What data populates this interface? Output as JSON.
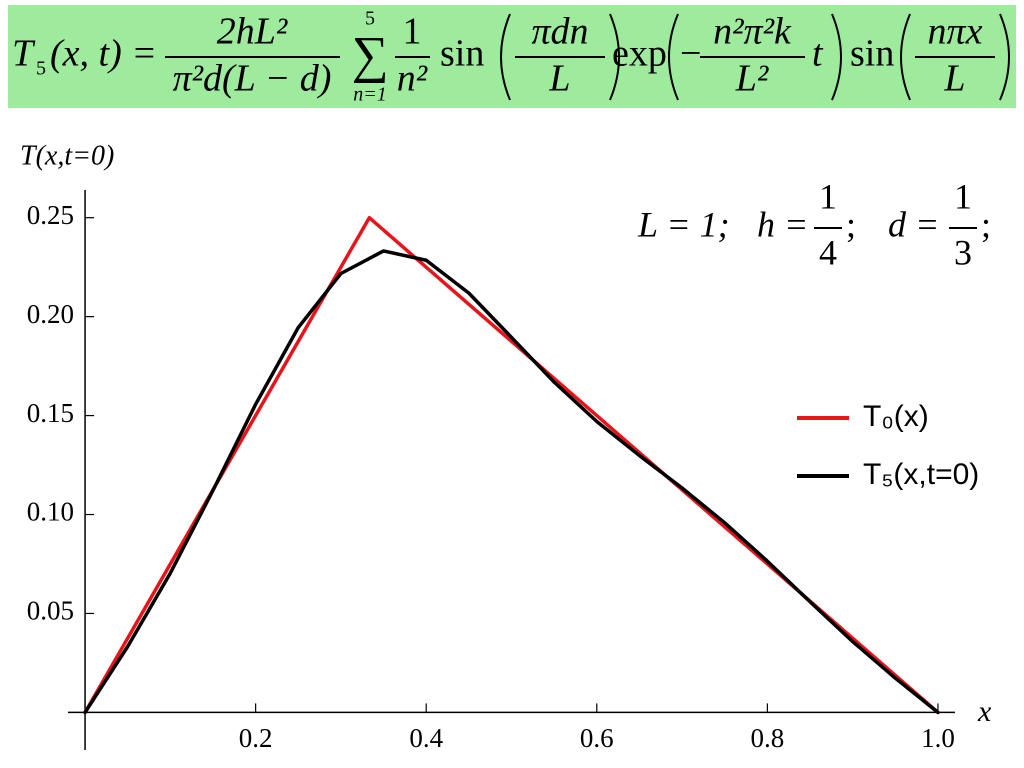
{
  "formula": {
    "lhs": "T",
    "lhs_sub": "5",
    "lhs_args": "(x, t) =",
    "coef_num": "2hL²",
    "coef_den": "π²d(L − d)",
    "sum": "∑",
    "sum_top": "5",
    "sum_bottom": "n=1",
    "frac1_num": "1",
    "frac1_den": "n²",
    "sin1": "sin",
    "a_num": "πdn",
    "a_den": "L",
    "exp": "exp",
    "minus": "−",
    "b_num": "n²π²k",
    "b_den": "L²",
    "t": "t",
    "sin2": "sin",
    "c_num": "nπx",
    "c_den": "L"
  },
  "chart_data": {
    "type": "line",
    "ylabel": "T(x,t=0)",
    "xlabel": "x",
    "annotation": {
      "l_part": "L = 1;",
      "h_part": "h =",
      "h_num": "1",
      "h_den": "4",
      "sep1": ";",
      "d_part": "d =",
      "d_num": "1",
      "d_den": "3",
      "sep2": ";"
    },
    "xlim": [
      -0.02,
      1.02
    ],
    "ylim": [
      -0.019,
      0.264
    ],
    "xticks": [
      0.2,
      0.4,
      0.6,
      0.8,
      {
        "value": 1,
        "label": "1.0"
      }
    ],
    "yticks": [
      0.05,
      {
        "value": 0.1,
        "label": "0.10"
      },
      0.15,
      {
        "value": 0.2,
        "label": "0.20"
      },
      0.25
    ],
    "legend": "right",
    "series": [
      {
        "name": "T₀(x)",
        "color": "#e8141b",
        "x": [
          0,
          0.3333,
          1
        ],
        "values": [
          0,
          0.25,
          0
        ]
      },
      {
        "name": "T₅(x,t=0)",
        "color": "#000000",
        "x": [
          0,
          0.05,
          0.1,
          0.15,
          0.2,
          0.25,
          0.3,
          0.35,
          0.4,
          0.45,
          0.5,
          0.55,
          0.6,
          0.65,
          0.7,
          0.75,
          0.8,
          0.85,
          0.9,
          0.95,
          1
        ],
        "values": [
          0,
          0.0333,
          0.0704,
          0.1122,
          0.1557,
          0.1945,
          0.2218,
          0.2332,
          0.2285,
          0.2119,
          0.1895,
          0.1669,
          0.147,
          0.1298,
          0.1134,
          0.0958,
          0.0764,
          0.0559,
          0.0358,
          0.0173,
          0
        ]
      }
    ]
  }
}
